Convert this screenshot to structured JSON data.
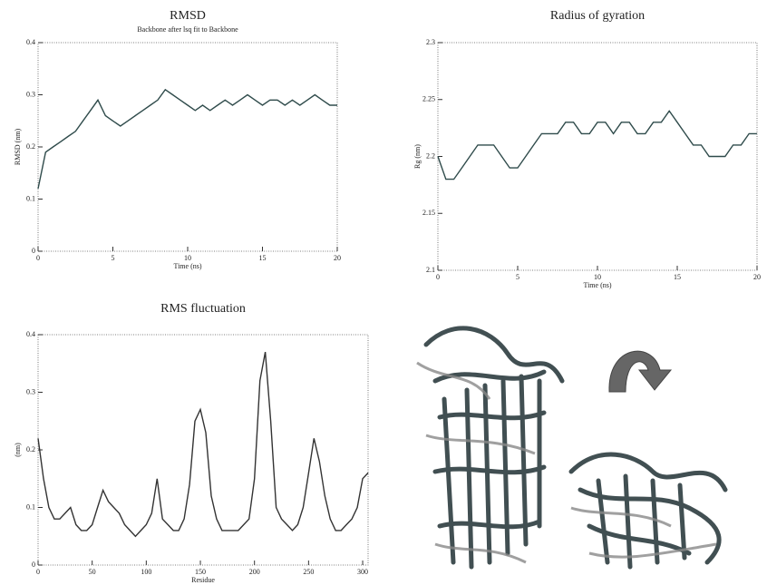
{
  "chart_data": [
    {
      "type": "line",
      "title": "RMSD",
      "subtitle": "Backbone after lsq fit to Backbone",
      "x_label": "Time (ns)",
      "y_label": "RMSD (nm)",
      "x": [
        0,
        0.5,
        1,
        1.5,
        2,
        2.5,
        3,
        3.5,
        4,
        4.5,
        5,
        5.5,
        6,
        6.5,
        7,
        7.5,
        8,
        8.5,
        9,
        9.5,
        10,
        10.5,
        11,
        11.5,
        12,
        12.5,
        13,
        13.5,
        14,
        14.5,
        15,
        15.5,
        16,
        16.5,
        17,
        17.5,
        18,
        18.5,
        19,
        19.5,
        20
      ],
      "values": [
        0.12,
        0.19,
        0.2,
        0.21,
        0.22,
        0.23,
        0.25,
        0.27,
        0.29,
        0.26,
        0.25,
        0.24,
        0.25,
        0.26,
        0.27,
        0.28,
        0.29,
        0.31,
        0.3,
        0.29,
        0.28,
        0.27,
        0.28,
        0.27,
        0.28,
        0.29,
        0.28,
        0.29,
        0.3,
        0.29,
        0.28,
        0.29,
        0.29,
        0.28,
        0.29,
        0.28,
        0.29,
        0.3,
        0.29,
        0.28,
        0.28
      ],
      "color": "#2f4b4b",
      "xlim": [
        0,
        20
      ],
      "xticks": [
        0,
        5,
        10,
        15,
        20
      ],
      "ylim": [
        0,
        0.4
      ],
      "yticks": [
        0,
        0.1,
        0.2,
        0.3,
        0.4
      ]
    },
    {
      "type": "line",
      "title": "Radius of gyration",
      "x_label": "Time (ns)",
      "y_label": "Rg (nm)",
      "x": [
        0,
        0.5,
        1,
        1.5,
        2,
        2.5,
        3,
        3.5,
        4,
        4.5,
        5,
        5.5,
        6,
        6.5,
        7,
        7.5,
        8,
        8.5,
        9,
        9.5,
        10,
        10.5,
        11,
        11.5,
        12,
        12.5,
        13,
        13.5,
        14,
        14.5,
        15,
        15.5,
        16,
        16.5,
        17,
        17.5,
        18,
        18.5,
        19,
        19.5,
        20
      ],
      "values": [
        2.2,
        2.18,
        2.18,
        2.19,
        2.2,
        2.21,
        2.21,
        2.21,
        2.2,
        2.19,
        2.19,
        2.2,
        2.21,
        2.22,
        2.22,
        2.22,
        2.23,
        2.23,
        2.22,
        2.22,
        2.23,
        2.23,
        2.22,
        2.23,
        2.23,
        2.22,
        2.22,
        2.23,
        2.23,
        2.24,
        2.23,
        2.22,
        2.21,
        2.21,
        2.2,
        2.2,
        2.2,
        2.21,
        2.21,
        2.22,
        2.22
      ],
      "color": "#2f4b4b",
      "xlim": [
        0,
        20
      ],
      "xticks": [
        0,
        5,
        10,
        15,
        20
      ],
      "ylim": [
        2.1,
        2.3
      ],
      "yticks": [
        2.1,
        2.15,
        2.2,
        2.25,
        2.3
      ]
    },
    {
      "type": "line",
      "title": "RMS fluctuation",
      "x_label": "Residue",
      "y_label": "(nm)",
      "x": [
        0,
        5,
        10,
        15,
        20,
        25,
        30,
        35,
        40,
        45,
        50,
        55,
        60,
        65,
        70,
        75,
        80,
        85,
        90,
        95,
        100,
        105,
        110,
        115,
        120,
        125,
        130,
        135,
        140,
        145,
        150,
        155,
        160,
        165,
        170,
        175,
        180,
        185,
        190,
        195,
        200,
        205,
        210,
        215,
        220,
        225,
        230,
        235,
        240,
        245,
        250,
        255,
        260,
        265,
        270,
        275,
        280,
        285,
        290,
        295,
        300,
        305
      ],
      "values": [
        0.22,
        0.15,
        0.1,
        0.08,
        0.08,
        0.09,
        0.1,
        0.07,
        0.06,
        0.06,
        0.07,
        0.1,
        0.13,
        0.11,
        0.1,
        0.09,
        0.07,
        0.06,
        0.05,
        0.06,
        0.07,
        0.09,
        0.15,
        0.08,
        0.07,
        0.06,
        0.06,
        0.08,
        0.14,
        0.25,
        0.27,
        0.23,
        0.12,
        0.08,
        0.06,
        0.06,
        0.06,
        0.06,
        0.07,
        0.08,
        0.15,
        0.32,
        0.37,
        0.25,
        0.1,
        0.08,
        0.07,
        0.06,
        0.07,
        0.1,
        0.16,
        0.22,
        0.18,
        0.12,
        0.08,
        0.06,
        0.06,
        0.07,
        0.08,
        0.1,
        0.15,
        0.16
      ],
      "color": "#333333",
      "xlim": [
        0,
        305
      ],
      "xticks": [
        0,
        50,
        100,
        150,
        200,
        250,
        300
      ],
      "ylim": [
        0,
        0.4
      ],
      "yticks": [
        0,
        0.1,
        0.2,
        0.3,
        0.4
      ]
    }
  ]
}
